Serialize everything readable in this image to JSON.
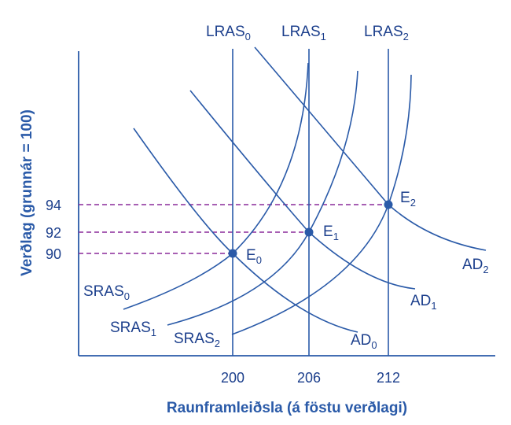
{
  "chart_data": {
    "type": "line",
    "title": "",
    "xlabel": "Raunframleiðsla (á föstu verðlagi)",
    "ylabel": "Verðlag (grunnár = 100)",
    "x_ticks": [
      200,
      206,
      212
    ],
    "y_ticks": [
      90,
      92,
      94
    ],
    "lras": [
      {
        "base": "LRAS",
        "sub": "0",
        "x": 200
      },
      {
        "base": "LRAS",
        "sub": "1",
        "x": 206
      },
      {
        "base": "LRAS",
        "sub": "2",
        "x": 212
      }
    ],
    "equilibria": [
      {
        "base": "E",
        "sub": "0",
        "x": 200,
        "y": 90
      },
      {
        "base": "E",
        "sub": "1",
        "x": 206,
        "y": 92
      },
      {
        "base": "E",
        "sub": "2",
        "x": 212,
        "y": 94
      }
    ],
    "ad_curves": [
      {
        "base": "AD",
        "sub": "0"
      },
      {
        "base": "AD",
        "sub": "1"
      },
      {
        "base": "AD",
        "sub": "2"
      }
    ],
    "sras_curves": [
      {
        "base": "SRAS",
        "sub": "0"
      },
      {
        "base": "SRAS",
        "sub": "1"
      },
      {
        "base": "SRAS",
        "sub": "2"
      }
    ],
    "colors": {
      "curve": "#2a5aa8",
      "guide": "#8a2a9a",
      "point": "#2a5aa8"
    },
    "grid": false
  }
}
